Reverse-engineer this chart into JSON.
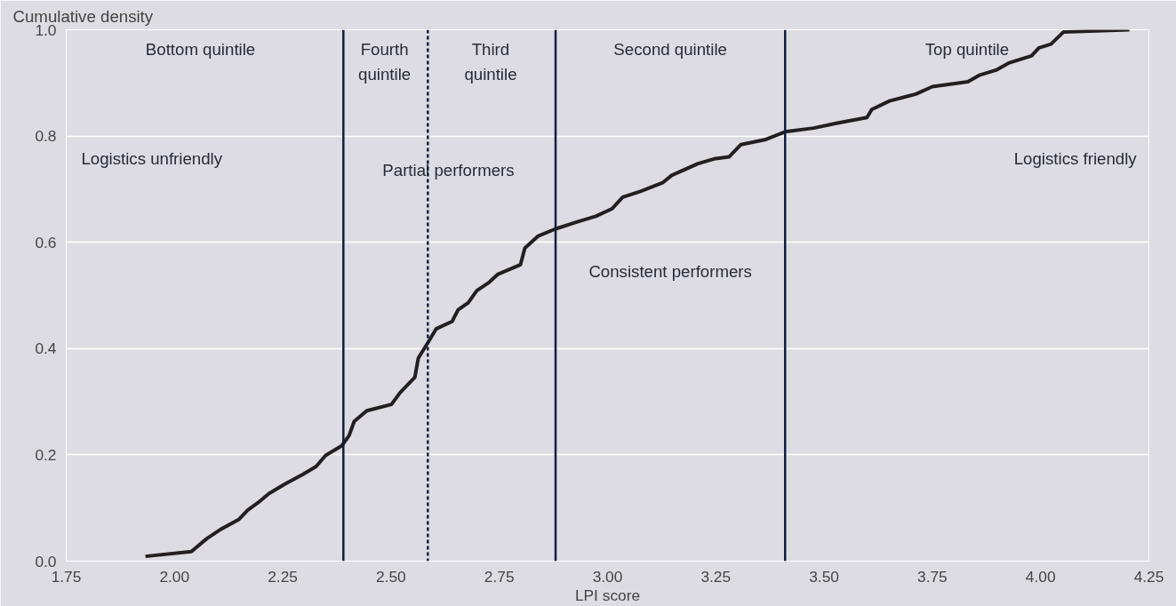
{
  "chart_data": {
    "type": "line",
    "xlabel": "LPI score",
    "ylabel": "Cumulative density",
    "xlim": [
      1.75,
      4.25
    ],
    "xticks": [
      {
        "value": 1.75,
        "label": "1.75"
      },
      {
        "value": 2.0,
        "label": "2.00"
      },
      {
        "value": 2.25,
        "label": "2.25"
      },
      {
        "value": 2.5,
        "label": "2.50"
      },
      {
        "value": 2.75,
        "label": "2.75"
      },
      {
        "value": 3.0,
        "label": "3.00"
      },
      {
        "value": 3.25,
        "label": "3.25"
      },
      {
        "value": 3.5,
        "label": "3.50"
      },
      {
        "value": 3.75,
        "label": "3.75"
      },
      {
        "value": 4.0,
        "label": "4.00"
      },
      {
        "value": 4.25,
        "label": "4.25"
      }
    ],
    "ylim": [
      0,
      1
    ],
    "yticks": [
      {
        "value": 0,
        "label": "0.0"
      },
      {
        "value": 0.2,
        "label": "0.2"
      },
      {
        "value": 0.4,
        "label": "0.4"
      },
      {
        "value": 0.6,
        "label": "0.6"
      },
      {
        "value": 0.8,
        "label": "0.8"
      },
      {
        "value": 1.0,
        "label": "1.0"
      }
    ],
    "grid": "y",
    "marker": "none",
    "line_style": "solid",
    "series": [
      {
        "color": "#231f20",
        "x": [
          1.933,
          2.039,
          2.074,
          2.107,
          2.148,
          2.169,
          2.193,
          2.218,
          2.255,
          2.296,
          2.327,
          2.349,
          2.386,
          2.403,
          2.415,
          2.444,
          2.501,
          2.521,
          2.555,
          2.563,
          2.585,
          2.604,
          2.641,
          2.655,
          2.678,
          2.698,
          2.727,
          2.747,
          2.799,
          2.809,
          2.84,
          2.879,
          2.932,
          2.973,
          3.01,
          3.035,
          3.076,
          3.127,
          3.148,
          3.209,
          3.246,
          3.281,
          3.308,
          3.363,
          3.41,
          3.476,
          3.528,
          3.599,
          3.61,
          3.651,
          3.712,
          3.75,
          3.832,
          3.86,
          3.897,
          3.928,
          3.979,
          3.996,
          4.024,
          4.053,
          4.205
        ],
        "values": [
          0.009,
          0.018,
          0.042,
          0.06,
          0.078,
          0.096,
          0.11,
          0.127,
          0.145,
          0.163,
          0.178,
          0.199,
          0.217,
          0.236,
          0.263,
          0.283,
          0.295,
          0.317,
          0.346,
          0.382,
          0.411,
          0.437,
          0.451,
          0.473,
          0.486,
          0.509,
          0.525,
          0.54,
          0.558,
          0.589,
          0.612,
          0.625,
          0.639,
          0.649,
          0.663,
          0.685,
          0.696,
          0.712,
          0.726,
          0.748,
          0.757,
          0.761,
          0.784,
          0.793,
          0.808,
          0.815,
          0.824,
          0.835,
          0.85,
          0.866,
          0.879,
          0.893,
          0.902,
          0.915,
          0.924,
          0.938,
          0.951,
          0.966,
          0.973,
          0.996,
          1.0
        ]
      }
    ],
    "ref_lines": [
      {
        "axis": "x",
        "value": 2.39,
        "color": "#0f1f3d",
        "line_style": "solid"
      },
      {
        "axis": "x",
        "value": 2.585,
        "color": "#0f1f3d",
        "line_style": "dashed"
      },
      {
        "axis": "x",
        "value": 2.88,
        "color": "#0f1f3d",
        "line_style": "solid"
      },
      {
        "axis": "x",
        "value": 3.41,
        "color": "#0f1f3d",
        "line_style": "solid"
      }
    ],
    "annotations": [
      "Bottom quintile",
      "Fourth\nquintile",
      "Third\nquintile",
      "Second quintile",
      "Top quintile",
      "Logistics unfriendly",
      "Partial performers",
      "Consistent performers",
      "Logistics friendly"
    ]
  }
}
